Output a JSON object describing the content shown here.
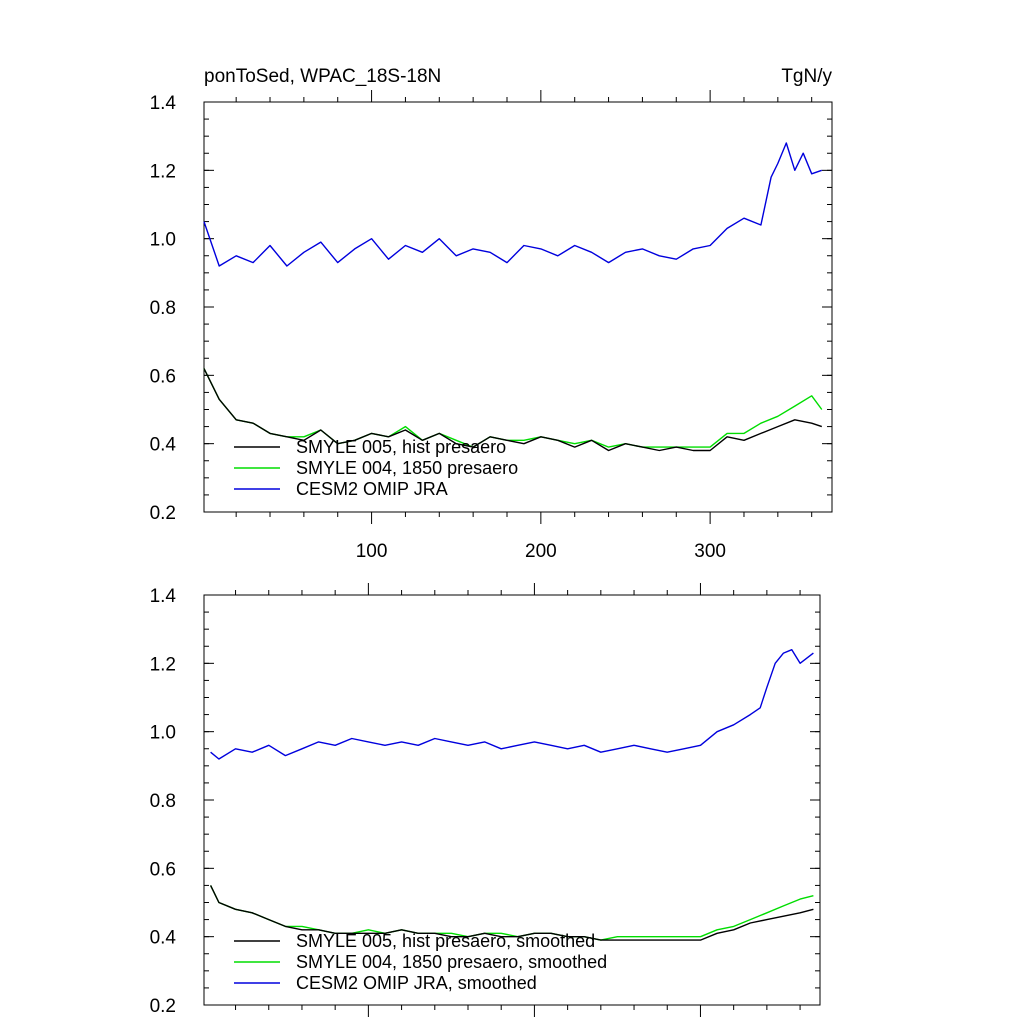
{
  "chart_data": [
    {
      "type": "line",
      "title": "ponToSed, WPAC_18S-18N",
      "units": "TgN/y",
      "xlim": [
        1,
        372
      ],
      "ylim": [
        0.2,
        1.4
      ],
      "yticks": [
        "0.2",
        "0.4",
        "0.6",
        "0.8",
        "1.0",
        "1.2",
        "1.4"
      ],
      "xticks": [
        "100",
        "200",
        "300"
      ],
      "grid": false,
      "legend_position": "bottom-left",
      "series": [
        {
          "name": "SMYLE 005, hist presaero",
          "color": "#000000",
          "x": [
            1,
            10,
            20,
            30,
            40,
            50,
            60,
            70,
            80,
            90,
            100,
            110,
            120,
            130,
            140,
            150,
            160,
            170,
            180,
            190,
            200,
            210,
            220,
            230,
            240,
            250,
            260,
            270,
            280,
            290,
            300,
            310,
            320,
            330,
            340,
            350,
            360,
            366
          ],
          "values": [
            0.62,
            0.53,
            0.47,
            0.46,
            0.43,
            0.42,
            0.41,
            0.44,
            0.4,
            0.41,
            0.43,
            0.42,
            0.44,
            0.41,
            0.43,
            0.4,
            0.39,
            0.42,
            0.41,
            0.4,
            0.42,
            0.41,
            0.39,
            0.41,
            0.38,
            0.4,
            0.39,
            0.38,
            0.39,
            0.38,
            0.38,
            0.42,
            0.41,
            0.43,
            0.45,
            0.47,
            0.46,
            0.45
          ]
        },
        {
          "name": "SMYLE 004, 1850 presaero",
          "color": "#00dd00",
          "x": [
            1,
            10,
            20,
            30,
            40,
            50,
            60,
            70,
            80,
            90,
            100,
            110,
            120,
            130,
            140,
            150,
            160,
            170,
            180,
            190,
            200,
            210,
            220,
            230,
            240,
            250,
            260,
            270,
            280,
            290,
            300,
            310,
            320,
            330,
            340,
            350,
            360,
            366
          ],
          "values": [
            0.62,
            0.53,
            0.47,
            0.46,
            0.43,
            0.42,
            0.42,
            0.44,
            0.4,
            0.41,
            0.43,
            0.42,
            0.45,
            0.41,
            0.43,
            0.41,
            0.39,
            0.42,
            0.41,
            0.41,
            0.42,
            0.41,
            0.4,
            0.41,
            0.39,
            0.4,
            0.39,
            0.39,
            0.39,
            0.39,
            0.39,
            0.43,
            0.43,
            0.46,
            0.48,
            0.51,
            0.54,
            0.5
          ]
        },
        {
          "name": "CESM2 OMIP JRA",
          "color": "#0000dd",
          "x": [
            1,
            10,
            20,
            30,
            40,
            50,
            60,
            70,
            80,
            90,
            100,
            110,
            120,
            130,
            140,
            150,
            160,
            170,
            180,
            190,
            200,
            210,
            220,
            230,
            240,
            250,
            260,
            270,
            280,
            290,
            300,
            310,
            320,
            330,
            336,
            340,
            345,
            350,
            355,
            360,
            366
          ],
          "values": [
            1.05,
            0.92,
            0.95,
            0.93,
            0.98,
            0.92,
            0.96,
            0.99,
            0.93,
            0.97,
            1.0,
            0.94,
            0.98,
            0.96,
            1.0,
            0.95,
            0.97,
            0.96,
            0.93,
            0.98,
            0.97,
            0.95,
            0.98,
            0.96,
            0.93,
            0.96,
            0.97,
            0.95,
            0.94,
            0.97,
            0.98,
            1.03,
            1.06,
            1.04,
            1.18,
            1.22,
            1.28,
            1.2,
            1.25,
            1.19,
            1.2
          ]
        }
      ]
    },
    {
      "type": "line",
      "title": "",
      "xlim": [
        1,
        372
      ],
      "ylim": [
        0.2,
        1.4
      ],
      "yticks": [
        "0.2",
        "0.4",
        "0.6",
        "0.8",
        "1.0",
        "1.2",
        "1.4"
      ],
      "xticks": [],
      "grid": false,
      "legend_position": "bottom-left",
      "series": [
        {
          "name": "SMYLE 005, hist presaero, smoothed",
          "color": "#000000",
          "x": [
            5,
            10,
            20,
            30,
            40,
            50,
            60,
            70,
            80,
            90,
            100,
            110,
            120,
            130,
            140,
            150,
            160,
            170,
            180,
            190,
            200,
            210,
            220,
            230,
            240,
            250,
            260,
            270,
            280,
            290,
            300,
            310,
            320,
            330,
            340,
            350,
            360,
            368
          ],
          "values": [
            0.55,
            0.5,
            0.48,
            0.47,
            0.45,
            0.43,
            0.42,
            0.42,
            0.41,
            0.41,
            0.41,
            0.41,
            0.42,
            0.41,
            0.41,
            0.4,
            0.4,
            0.41,
            0.4,
            0.4,
            0.41,
            0.41,
            0.4,
            0.4,
            0.39,
            0.39,
            0.39,
            0.39,
            0.39,
            0.39,
            0.39,
            0.41,
            0.42,
            0.44,
            0.45,
            0.46,
            0.47,
            0.48
          ]
        },
        {
          "name": "SMYLE 004, 1850 presaero, smoothed",
          "color": "#00dd00",
          "x": [
            5,
            10,
            20,
            30,
            40,
            50,
            60,
            70,
            80,
            90,
            100,
            110,
            120,
            130,
            140,
            150,
            160,
            170,
            180,
            190,
            200,
            210,
            220,
            230,
            240,
            250,
            260,
            270,
            280,
            290,
            300,
            310,
            320,
            330,
            340,
            350,
            360,
            368
          ],
          "values": [
            0.55,
            0.5,
            0.48,
            0.47,
            0.45,
            0.43,
            0.43,
            0.42,
            0.41,
            0.41,
            0.42,
            0.41,
            0.42,
            0.41,
            0.41,
            0.41,
            0.4,
            0.41,
            0.41,
            0.4,
            0.41,
            0.41,
            0.4,
            0.4,
            0.39,
            0.4,
            0.4,
            0.4,
            0.4,
            0.4,
            0.4,
            0.42,
            0.43,
            0.45,
            0.47,
            0.49,
            0.51,
            0.52
          ]
        },
        {
          "name": "CESM2 OMIP JRA, smoothed",
          "color": "#0000dd",
          "x": [
            5,
            10,
            20,
            30,
            40,
            50,
            60,
            70,
            80,
            90,
            100,
            110,
            120,
            130,
            140,
            150,
            160,
            170,
            180,
            190,
            200,
            210,
            220,
            230,
            240,
            250,
            260,
            270,
            280,
            290,
            300,
            310,
            320,
            330,
            336,
            340,
            345,
            350,
            355,
            360,
            368
          ],
          "values": [
            0.94,
            0.92,
            0.95,
            0.94,
            0.96,
            0.93,
            0.95,
            0.97,
            0.96,
            0.98,
            0.97,
            0.96,
            0.97,
            0.96,
            0.98,
            0.97,
            0.96,
            0.97,
            0.95,
            0.96,
            0.97,
            0.96,
            0.95,
            0.96,
            0.94,
            0.95,
            0.96,
            0.95,
            0.94,
            0.95,
            0.96,
            1.0,
            1.02,
            1.05,
            1.07,
            1.13,
            1.2,
            1.23,
            1.24,
            1.2,
            1.23
          ]
        }
      ]
    }
  ]
}
